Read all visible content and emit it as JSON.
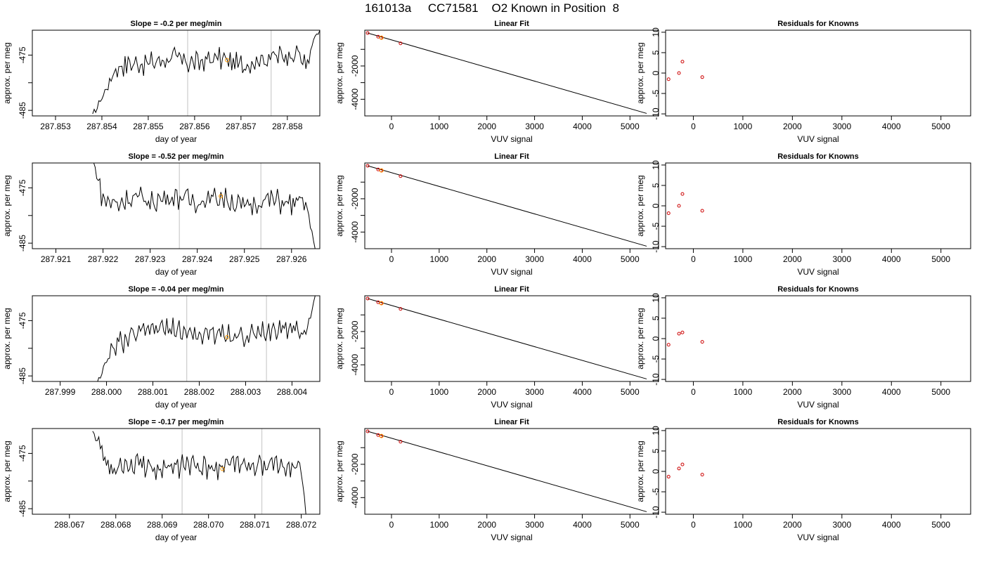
{
  "title": "161013a     CC71581    O2 Known in Position  8",
  "colors": {
    "trace": "#000000",
    "marker_known": "#ff9900",
    "marker_fit": "#cc0000",
    "cursor": "#cccccc",
    "axis": "#000000"
  },
  "chart_data": [
    {
      "id": "r1-timeseries",
      "type": "line",
      "title": "Slope =  -0.2  per meg/min",
      "xlabel": "day of year",
      "ylabel": "approx. per meg",
      "xlim": [
        287.8525,
        287.8587
      ],
      "ylim": [
        -486,
        -470.5
      ],
      "xticks": [
        "287.853",
        "287.854",
        "287.855",
        "287.856",
        "287.857",
        "287.858"
      ],
      "xtick_values": [
        287.853,
        287.854,
        287.855,
        287.856,
        287.857,
        287.858
      ],
      "yticks": [
        "-475",
        "-485"
      ],
      "ytick_values": [
        -475,
        -485
      ],
      "vlines": [
        287.85585,
        287.85765
      ],
      "anchors": [
        [
          287.8538,
          -486
        ],
        [
          287.8541,
          -481
        ],
        [
          287.8543,
          -477.5
        ],
        [
          287.8545,
          -476.5
        ],
        [
          287.855,
          -476.5
        ],
        [
          287.8555,
          -475.5
        ],
        [
          287.856,
          -476.5
        ],
        [
          287.8565,
          -475.5
        ],
        [
          287.857,
          -476.8
        ],
        [
          287.8575,
          -475.5
        ],
        [
          287.858,
          -475
        ],
        [
          287.8582,
          -474
        ],
        [
          287.8584,
          -477
        ],
        [
          287.8586,
          -472
        ],
        [
          287.8587,
          -470.5
        ]
      ],
      "marker": {
        "x": 287.8567,
        "y": -475.9
      }
    },
    {
      "id": "r1-fit",
      "type": "line",
      "title": "Linear Fit",
      "xlabel": "VUV signal",
      "ylabel": "approx. per meg",
      "xlim": [
        -560,
        5600
      ],
      "ylim": [
        -5000,
        150
      ],
      "xticks": [
        "0",
        "1000",
        "2000",
        "3000",
        "4000",
        "5000"
      ],
      "xtick_values": [
        0,
        1000,
        2000,
        3000,
        4000,
        5000
      ],
      "yticks": [
        "-2000",
        "-4000"
      ],
      "ytick_values": [
        -2000,
        -4000
      ],
      "line": [
        [
          -500,
          -20
        ],
        [
          5350,
          -4850
        ]
      ],
      "points": [
        [
          -500,
          -20
        ],
        [
          -280,
          -240
        ],
        [
          -220,
          -300
        ],
        [
          190,
          -640
        ]
      ],
      "known_points": [
        [
          -210,
          -300
        ]
      ]
    },
    {
      "id": "r1-residuals",
      "type": "scatter",
      "title": "Residuals for Knowns",
      "xlabel": "VUV signal",
      "ylabel": "approx. per meg",
      "xlim": [
        -560,
        5600
      ],
      "ylim": [
        -10.5,
        10.5
      ],
      "xticks": [
        "0",
        "1000",
        "2000",
        "3000",
        "4000",
        "5000"
      ],
      "xtick_values": [
        0,
        1000,
        2000,
        3000,
        4000,
        5000
      ],
      "yticks": [
        "-10",
        "-5",
        "0",
        "5",
        "10"
      ],
      "ytick_values": [
        -10,
        -5,
        0,
        5,
        10
      ],
      "points": [
        [
          -500,
          -1.5
        ],
        [
          -290,
          0
        ],
        [
          -220,
          2.8
        ],
        [
          180,
          -1
        ]
      ]
    },
    {
      "id": "r2-timeseries",
      "type": "line",
      "title": "Slope =  -0.52  per meg/min",
      "xlabel": "day of year",
      "ylabel": "approx. per meg",
      "xlim": [
        287.9205,
        287.9266
      ],
      "ylim": [
        -486,
        -470.5
      ],
      "xticks": [
        "287.921",
        "287.922",
        "287.923",
        "287.924",
        "287.925",
        "287.926"
      ],
      "xtick_values": [
        287.921,
        287.922,
        287.923,
        287.924,
        287.925,
        287.926
      ],
      "yticks": [
        "-475",
        "-485"
      ],
      "ytick_values": [
        -475,
        -485
      ],
      "vlines": [
        287.92362,
        287.92535
      ],
      "anchors": [
        [
          287.9218,
          -470.5
        ],
        [
          287.9219,
          -474
        ],
        [
          287.922,
          -477
        ],
        [
          287.9223,
          -478
        ],
        [
          287.9226,
          -476.5
        ],
        [
          287.923,
          -477.5
        ],
        [
          287.9235,
          -476.5
        ],
        [
          287.924,
          -477.5
        ],
        [
          287.9245,
          -476.5
        ],
        [
          287.925,
          -478.5
        ],
        [
          287.9255,
          -477
        ],
        [
          287.926,
          -478
        ],
        [
          287.9263,
          -477.5
        ],
        [
          287.9265,
          -486
        ]
      ],
      "marker": {
        "x": 287.9245,
        "y": -476.5
      }
    },
    {
      "id": "r2-fit",
      "type": "line",
      "title": "Linear Fit",
      "xlabel": "VUV signal",
      "ylabel": "approx. per meg",
      "xlim": [
        -560,
        5600
      ],
      "ylim": [
        -5000,
        150
      ],
      "xticks": [
        "0",
        "1000",
        "2000",
        "3000",
        "4000",
        "5000"
      ],
      "xtick_values": [
        0,
        1000,
        2000,
        3000,
        4000,
        5000
      ],
      "yticks": [
        "-2000",
        "-4000"
      ],
      "ytick_values": [
        -2000,
        -4000
      ],
      "line": [
        [
          -500,
          -20
        ],
        [
          5350,
          -4850
        ]
      ],
      "points": [
        [
          -500,
          -20
        ],
        [
          -280,
          -240
        ],
        [
          -220,
          -300
        ],
        [
          190,
          -640
        ]
      ],
      "known_points": [
        [
          -210,
          -300
        ]
      ]
    },
    {
      "id": "r2-residuals",
      "type": "scatter",
      "title": "Residuals for Knowns",
      "xlabel": "VUV signal",
      "ylabel": "approx. per meg",
      "xlim": [
        -560,
        5600
      ],
      "ylim": [
        -10.5,
        10.5
      ],
      "xticks": [
        "0",
        "1000",
        "2000",
        "3000",
        "4000",
        "5000"
      ],
      "xtick_values": [
        0,
        1000,
        2000,
        3000,
        4000,
        5000
      ],
      "yticks": [
        "-10",
        "-5",
        "0",
        "5",
        "10"
      ],
      "ytick_values": [
        -10,
        -5,
        0,
        5,
        10
      ],
      "points": [
        [
          -500,
          -1.8
        ],
        [
          -290,
          0
        ],
        [
          -220,
          2.9
        ],
        [
          180,
          -1.2
        ]
      ]
    },
    {
      "id": "r3-timeseries",
      "type": "line",
      "title": "Slope =  -0.04  per meg/min",
      "xlabel": "day of year",
      "ylabel": "approx. per meg",
      "xlim": [
        287.9984,
        288.0046
      ],
      "ylim": [
        -486,
        -470.5
      ],
      "xticks": [
        "287.999",
        "288.000",
        "288.001",
        "288.002",
        "288.003",
        "288.004"
      ],
      "xtick_values": [
        287.999,
        288.0,
        288.001,
        288.002,
        288.003,
        288.004
      ],
      "yticks": [
        "-475",
        "-485"
      ],
      "ytick_values": [
        -475,
        -485
      ],
      "vlines": [
        288.00173,
        288.00345
      ],
      "anchors": [
        [
          287.9998,
          -486
        ],
        [
          288.0001,
          -481
        ],
        [
          288.0003,
          -479
        ],
        [
          288.0007,
          -477.5
        ],
        [
          288.001,
          -476.5
        ],
        [
          288.0015,
          -476.5
        ],
        [
          288.002,
          -478
        ],
        [
          288.0025,
          -477
        ],
        [
          288.003,
          -478
        ],
        [
          288.0035,
          -477
        ],
        [
          288.004,
          -476
        ],
        [
          288.0043,
          -477.5
        ],
        [
          288.0045,
          -470.5
        ]
      ],
      "marker": {
        "x": 288.0026,
        "y": -478
      }
    },
    {
      "id": "r3-fit",
      "type": "line",
      "title": "Linear Fit",
      "xlabel": "VUV signal",
      "ylabel": "approx. per meg",
      "xlim": [
        -560,
        5600
      ],
      "ylim": [
        -5000,
        150
      ],
      "xticks": [
        "0",
        "1000",
        "2000",
        "3000",
        "4000",
        "5000"
      ],
      "xtick_values": [
        0,
        1000,
        2000,
        3000,
        4000,
        5000
      ],
      "yticks": [
        "-2000",
        "-4000"
      ],
      "ytick_values": [
        -2000,
        -4000
      ],
      "line": [
        [
          -500,
          -20
        ],
        [
          5350,
          -4850
        ]
      ],
      "points": [
        [
          -500,
          -20
        ],
        [
          -280,
          -240
        ],
        [
          -220,
          -300
        ],
        [
          190,
          -640
        ]
      ],
      "known_points": [
        [
          -210,
          -300
        ]
      ]
    },
    {
      "id": "r3-residuals",
      "type": "scatter",
      "title": "Residuals for Knowns",
      "xlabel": "VUV signal",
      "ylabel": "approx. per meg",
      "xlim": [
        -560,
        5600
      ],
      "ylim": [
        -10.5,
        10.5
      ],
      "xticks": [
        "0",
        "1000",
        "2000",
        "3000",
        "4000",
        "5000"
      ],
      "xtick_values": [
        0,
        1000,
        2000,
        3000,
        4000,
        5000
      ],
      "yticks": [
        "-10",
        "-5",
        "0",
        "5",
        "10"
      ],
      "ytick_values": [
        -10,
        -5,
        0,
        5,
        10
      ],
      "points": [
        [
          -500,
          -1.5
        ],
        [
          -290,
          1.2
        ],
        [
          -220,
          1.5
        ],
        [
          180,
          -0.8
        ]
      ]
    },
    {
      "id": "r4-timeseries",
      "type": "line",
      "title": "Slope =  -0.17  per meg/min",
      "xlabel": "day of year",
      "ylabel": "approx. per meg",
      "xlim": [
        288.0662,
        288.0724
      ],
      "ylim": [
        -486,
        -470.5
      ],
      "xticks": [
        "288.067",
        "288.068",
        "288.069",
        "288.070",
        "288.071",
        "288.072"
      ],
      "xtick_values": [
        288.067,
        288.068,
        288.069,
        288.07,
        288.071,
        288.072
      ],
      "yticks": [
        "-475",
        "-485"
      ],
      "ytick_values": [
        -475,
        -485
      ],
      "vlines": [
        288.06943,
        288.07115
      ],
      "anchors": [
        [
          288.0675,
          -470.5
        ],
        [
          288.0676,
          -473
        ],
        [
          288.0678,
          -477
        ],
        [
          288.068,
          -478
        ],
        [
          288.0685,
          -477
        ],
        [
          288.069,
          -478
        ],
        [
          288.0695,
          -477
        ],
        [
          288.07,
          -478
        ],
        [
          288.0705,
          -476.8
        ],
        [
          288.071,
          -477.8
        ],
        [
          288.0715,
          -477
        ],
        [
          288.072,
          -478
        ],
        [
          288.0721,
          -486
        ]
      ],
      "marker": {
        "x": 288.0703,
        "y": -477.8
      }
    },
    {
      "id": "r4-fit",
      "type": "line",
      "title": "Linear Fit",
      "xlabel": "VUV signal",
      "ylabel": "approx. per meg",
      "xlim": [
        -560,
        5600
      ],
      "ylim": [
        -5000,
        150
      ],
      "xticks": [
        "0",
        "1000",
        "2000",
        "3000",
        "4000",
        "5000"
      ],
      "xtick_values": [
        0,
        1000,
        2000,
        3000,
        4000,
        5000
      ],
      "yticks": [
        "-2000",
        "-4000"
      ],
      "ytick_values": [
        -2000,
        -4000
      ],
      "line": [
        [
          -500,
          -20
        ],
        [
          5350,
          -4850
        ]
      ],
      "points": [
        [
          -500,
          -20
        ],
        [
          -280,
          -240
        ],
        [
          -220,
          -300
        ],
        [
          190,
          -640
        ]
      ],
      "known_points": [
        [
          -210,
          -300
        ]
      ]
    },
    {
      "id": "r4-residuals",
      "type": "scatter",
      "title": "Residuals for Knowns",
      "xlabel": "VUV signal",
      "ylabel": "approx. per meg",
      "xlim": [
        -560,
        5600
      ],
      "ylim": [
        -10.5,
        10.5
      ],
      "xticks": [
        "0",
        "1000",
        "2000",
        "3000",
        "4000",
        "5000"
      ],
      "xtick_values": [
        0,
        1000,
        2000,
        3000,
        4000,
        5000
      ],
      "yticks": [
        "-10",
        "-5",
        "0",
        "5",
        "10"
      ],
      "ytick_values": [
        -10,
        -5,
        0,
        5,
        10
      ],
      "points": [
        [
          -500,
          -1.3
        ],
        [
          -290,
          0.7
        ],
        [
          -220,
          1.7
        ],
        [
          180,
          -0.8
        ]
      ]
    }
  ]
}
